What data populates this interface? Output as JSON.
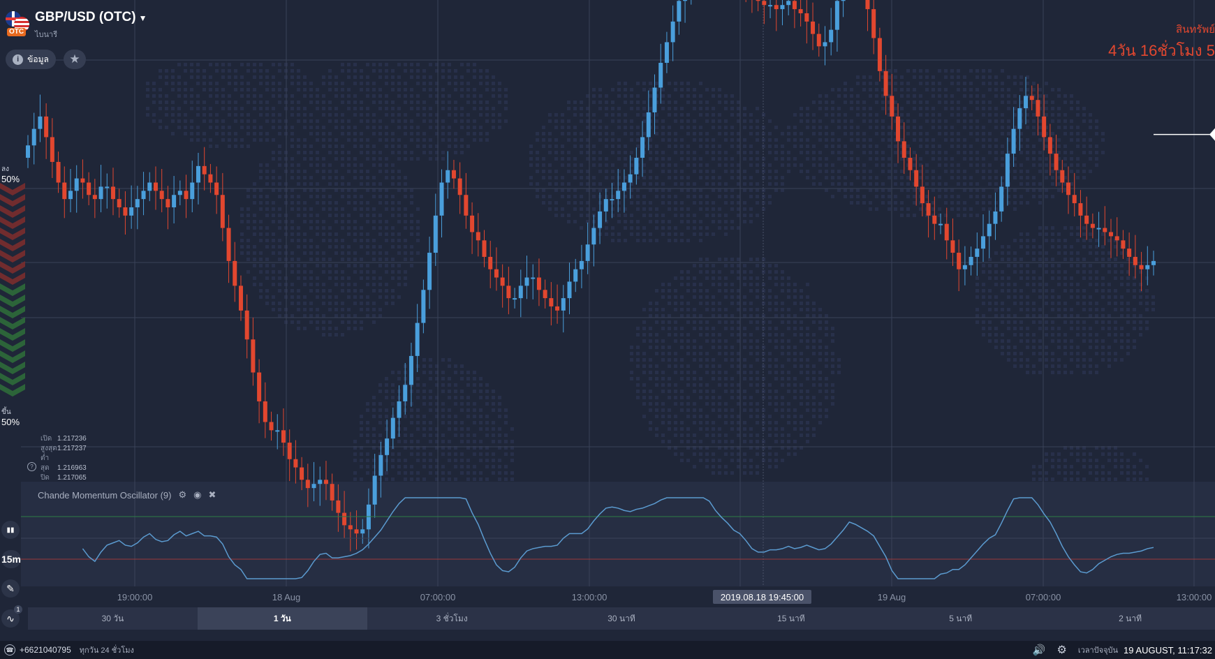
{
  "asset": {
    "name": "GBP/USD (OTC)",
    "subtitle": "ไบนารี",
    "badge": "OTC",
    "flag_icon": "gbp-usd-flag-icon"
  },
  "buttons": {
    "info_label": "ข้อมูล",
    "info_icon": "i",
    "favorite_icon": "★"
  },
  "expiry": {
    "label": "สินทรัพย์",
    "time": "4วัน 16ชั่วโมง 5"
  },
  "sentiment": {
    "down_label": "ลง",
    "down_pct": "50%",
    "up_label": "ขึ้น",
    "up_pct": "50%"
  },
  "ohlc": [
    {
      "label": "เปิด",
      "value": "1.217236"
    },
    {
      "label": "สูงสุด",
      "value": "1.217237"
    },
    {
      "label": "ต่ำสุด",
      "value": "1.216963"
    },
    {
      "label": "ปิด",
      "value": "1.217065"
    }
  ],
  "indicator": {
    "name": "Chande Momentum Oscillator (9)"
  },
  "tools": {
    "chart_type_icon": "▮▮",
    "timeframe": "15m",
    "draw_icon": "✎",
    "indicators_icon": "∿",
    "indicators_count": "1"
  },
  "crosshair_time": "2019.08.18 19:45:00",
  "timeframes": [
    {
      "label": "30 วัน",
      "active": false
    },
    {
      "label": "1 วัน",
      "active": true
    },
    {
      "label": "3 ชั่วโมง",
      "active": false
    },
    {
      "label": "30 นาที",
      "active": false
    },
    {
      "label": "15 นาที",
      "active": false
    },
    {
      "label": "5 นาที",
      "active": false
    },
    {
      "label": "2 นาที",
      "active": false
    }
  ],
  "status": {
    "phone": "+6621040795",
    "hours": "ทุกวัน 24 ชั่วโมง",
    "now_label": "เวลาปัจจุบัน",
    "now": "19 AUGUST, 11:17:32"
  },
  "colors": {
    "up": "#4a9fdc",
    "down": "#e2472f",
    "background": "#1f2638"
  },
  "chart_data": {
    "type": "candlestick",
    "x_tick_labels": [
      "19:00:00",
      "18 Aug",
      "07:00:00",
      "13:00:00",
      "19 Aug",
      "07:00:00",
      "13:00:00"
    ],
    "y_range": [
      1.2095,
      1.2188
    ],
    "last_price": 1.217065,
    "candles_close": [
      1.2168,
      1.2172,
      1.2175,
      1.217,
      1.2164,
      1.2159,
      1.2155,
      1.2157,
      1.216,
      1.2159,
      1.2156,
      1.2155,
      1.2158,
      1.2158,
      1.2155,
      1.2153,
      1.2151,
      1.2153,
      1.2155,
      1.2157,
      1.2159,
      1.2157,
      1.2155,
      1.2153,
      1.2156,
      1.2157,
      1.2155,
      1.2159,
      1.2163,
      1.2161,
      1.2159,
      1.2156,
      1.2148,
      1.214,
      1.2134,
      1.2128,
      1.2121,
      1.2113,
      1.2106,
      1.2101,
      1.2099,
      1.2099,
      1.2096,
      1.2092,
      1.209,
      1.2087,
      1.2085,
      1.2086,
      1.2087,
      1.2086,
      1.2082,
      1.2079,
      1.2076,
      1.2075,
      1.2074,
      1.2075,
      1.2081,
      1.2088,
      1.2093,
      1.2097,
      1.2102,
      1.2106,
      1.211,
      1.2117,
      1.2125,
      1.2133,
      1.2142,
      1.2151,
      1.2159,
      1.2162,
      1.216,
      1.2156,
      1.2151,
      1.2147,
      1.2145,
      1.2141,
      1.2138,
      1.2136,
      1.2134,
      1.2131,
      1.2131,
      1.2134,
      1.2136,
      1.2136,
      1.2133,
      1.2131,
      1.2129,
      1.2128,
      1.2131,
      1.2135,
      1.2138,
      1.214,
      1.2144,
      1.2148,
      1.2152,
      1.2155,
      1.2155,
      1.2157,
      1.2159,
      1.2161,
      1.2165,
      1.217,
      1.2176,
      1.2182,
      1.2188,
      1.2193,
      1.2198,
      1.2203,
      1.2206,
      1.221,
      1.2213,
      1.2215,
      1.2214,
      1.2212,
      1.2211,
      1.2211,
      1.221,
      1.221,
      1.2208,
      1.2204,
      1.2203,
      1.2202,
      1.2202,
      1.2201,
      1.2202,
      1.2203,
      1.2201,
      1.22,
      1.2198,
      1.2195,
      1.2192,
      1.2193,
      1.2196,
      1.2203,
      1.221,
      1.2215,
      1.2212,
      1.2207,
      1.2201,
      1.2194,
      1.2186,
      1.218,
      1.2175,
      1.2169,
      1.2165,
      1.2162,
      1.2158,
      1.2154,
      1.2151,
      1.2149,
      1.2149,
      1.2145,
      1.2142,
      1.2138,
      1.2139,
      1.2141,
      1.2143,
      1.2146,
      1.2149,
      1.2152,
      1.2158,
      1.2166,
      1.2172,
      1.2177,
      1.218,
      1.2179,
      1.2175,
      1.217,
      1.2166,
      1.2162,
      1.2159,
      1.2156,
      1.2154,
      1.2151,
      1.2149,
      1.2148,
      1.2148,
      1.2147,
      1.2146,
      1.2145,
      1.2143,
      1.2141,
      1.2139,
      1.2138,
      1.2139,
      1.214
    ]
  }
}
